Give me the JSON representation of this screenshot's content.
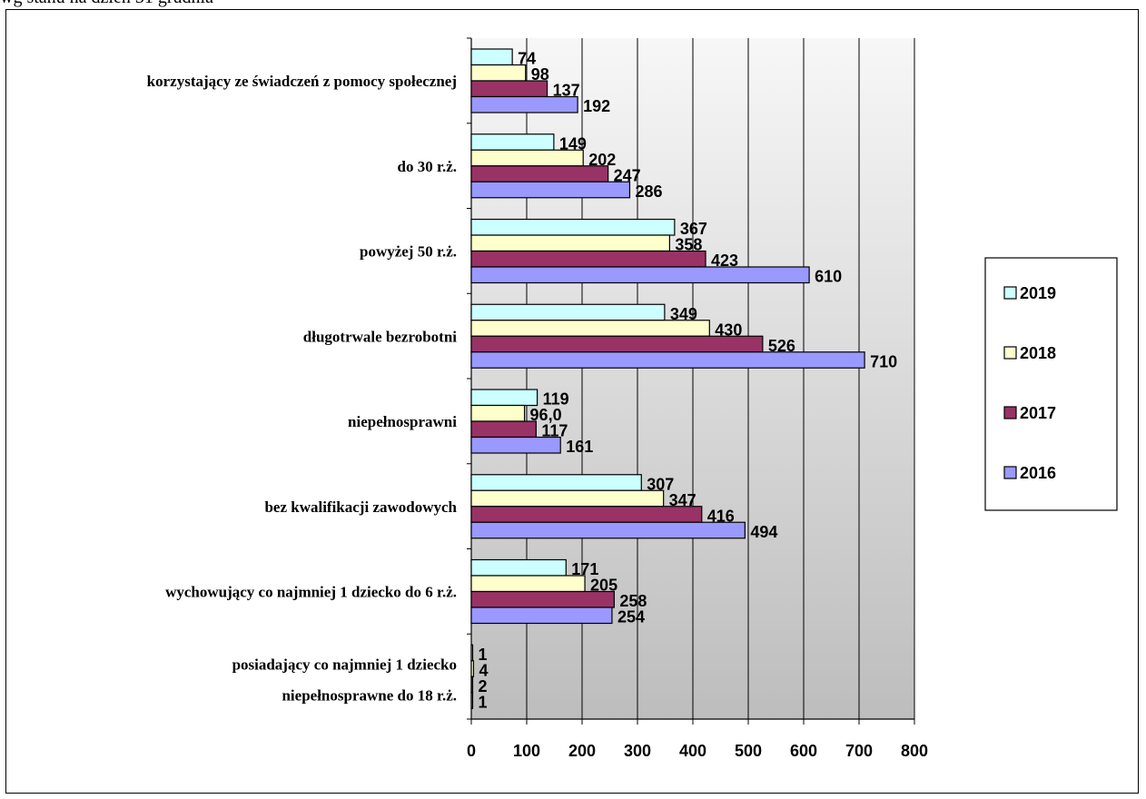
{
  "caption": "wg stanu na dzień 31 grudnia",
  "colors": {
    "2019": "#ccffff",
    "2018": "#ffffcc",
    "2017": "#993366",
    "2016": "#9999ff"
  },
  "chart_data": {
    "type": "bar",
    "orientation": "horizontal",
    "categories": [
      "korzystający ze świadczeń z pomocy społecznej",
      "do 30 r.ż.",
      "powyżej 50 r.ż.",
      "długotrwale bezrobotni",
      "niepełnosprawni",
      "bez kwalifikacji zawodowych",
      "wychowujący co najmniej 1 dziecko do 6 r.ż.",
      "posiadający co najmniej 1 dziecko niepełnosprawne do 18 r.ż."
    ],
    "category_lines": [
      [
        "korzystający ze świadczeń z pomocy społecznej"
      ],
      [
        "do 30 r.ż."
      ],
      [
        "powyżej 50 r.ż."
      ],
      [
        "długotrwale bezrobotni"
      ],
      [
        "niepełnosprawni"
      ],
      [
        "bez kwalifikacji zawodowych"
      ],
      [
        "wychowujący co najmniej 1 dziecko do 6 r.ż."
      ],
      [
        "posiadający co najmniej 1 dziecko",
        "niepełnosprawne do 18 r.ż."
      ]
    ],
    "series": [
      {
        "name": "2019",
        "values": [
          74,
          149,
          367,
          349,
          119,
          307,
          171,
          1
        ],
        "labels": [
          "74",
          "149",
          "367",
          "349",
          "119",
          "307",
          "171",
          "1"
        ]
      },
      {
        "name": "2018",
        "values": [
          98,
          202,
          358,
          430,
          96,
          347,
          205,
          4
        ],
        "labels": [
          "98",
          "202",
          "358",
          "430",
          "96,0",
          "347",
          "205",
          "4"
        ]
      },
      {
        "name": "2017",
        "values": [
          137,
          247,
          423,
          526,
          117,
          416,
          258,
          2
        ],
        "labels": [
          "137",
          "247",
          "423",
          "526",
          "117",
          "416",
          "258",
          "2"
        ]
      },
      {
        "name": "2016",
        "values": [
          192,
          286,
          610,
          710,
          161,
          494,
          254,
          1
        ],
        "labels": [
          "192",
          "286",
          "610",
          "710",
          "161",
          "494",
          "254",
          "1"
        ]
      }
    ],
    "xticks": [
      "0",
      "100",
      "200",
      "300",
      "400",
      "500",
      "600",
      "700",
      "800"
    ],
    "xlim": [
      0,
      800
    ],
    "title": "",
    "xlabel": "",
    "ylabel": "",
    "legend": [
      "2019",
      "2018",
      "2017",
      "2016"
    ],
    "legend_position": "right",
    "grid": "vertical"
  }
}
